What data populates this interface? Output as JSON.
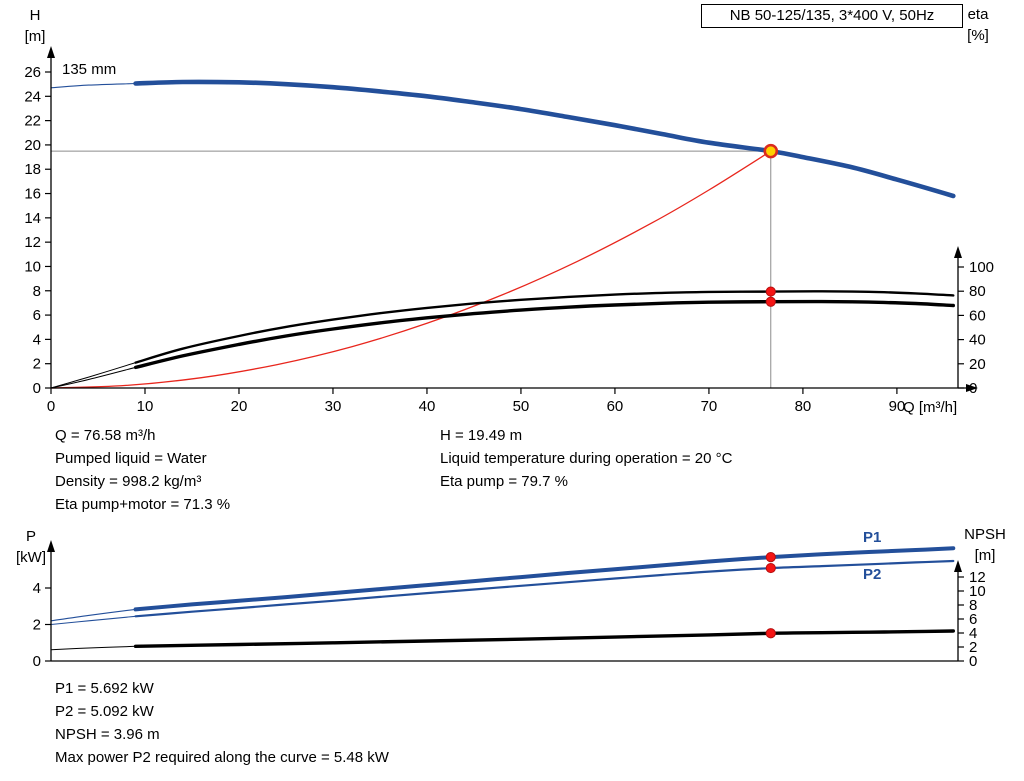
{
  "colors": {
    "pump_blue": "#234f9a",
    "system_red": "#e8261d",
    "curve_black": "#000000",
    "marker_red": "#f51515",
    "marker_ring_red": "#db2b1f",
    "duty_yellow": "#ffd100",
    "crosshair_grey": "#8c8c8c"
  },
  "duty_info": {
    "left": [
      "Q = 76.58 m³/h",
      "Pumped liquid = Water",
      "Density = 998.2 kg/m³",
      "Eta pump+motor = 71.3 %"
    ],
    "right": [
      "H = 19.49 m",
      "Liquid temperature during operation = 20 °C",
      "Eta pump = 79.7 %"
    ]
  },
  "power_info": [
    "P1 = 5.692 kW",
    "P2 = 5.092 kW",
    "NPSH = 3.96 m",
    "Max power P2 required along the curve = 5.48 kW"
  ],
  "chart_data": [
    {
      "type": "line",
      "title": "NB 50-125/135, 3*400 V, 50Hz",
      "impeller_label": "135 mm",
      "xlabel": "Q [m³/h]",
      "ylabel_left": [
        "H",
        "[m]"
      ],
      "ylabel_right": [
        "eta",
        "[%]"
      ],
      "grid": false,
      "xlim": [
        0,
        96.5
      ],
      "x_ticks": [
        0,
        10,
        20,
        30,
        40,
        50,
        60,
        70,
        80,
        90
      ],
      "left_axis": {
        "label": "H [m]",
        "lim": [
          0,
          26
        ],
        "ticks": [
          0,
          2,
          4,
          6,
          8,
          10,
          12,
          14,
          16,
          18,
          20,
          22,
          24,
          26
        ]
      },
      "right_axis": {
        "label": "eta [%]",
        "lim": [
          0,
          100
        ],
        "ticks": [
          0,
          20,
          40,
          60,
          80,
          100
        ]
      },
      "duty_point": {
        "Q": 76.58,
        "H": 19.49,
        "eta_pump": 79.7,
        "eta_pump_motor": 71.3
      },
      "series": [
        {
          "name": "head-min-flow",
          "axis": "left",
          "style": "blue-thin",
          "points": [
            [
              0,
              24.7
            ],
            [
              4,
              24.92
            ],
            [
              9,
              25.05
            ]
          ]
        },
        {
          "name": "head-135mm",
          "axis": "left",
          "style": "blue-thick",
          "points": [
            [
              9,
              25.05
            ],
            [
              14,
              25.18
            ],
            [
              20,
              25.15
            ],
            [
              25,
              25.0
            ],
            [
              30,
              24.75
            ],
            [
              35,
              24.4
            ],
            [
              40,
              24.0
            ],
            [
              45,
              23.5
            ],
            [
              50,
              22.95
            ],
            [
              55,
              22.3
            ],
            [
              60,
              21.62
            ],
            [
              65,
              20.9
            ],
            [
              70,
              20.18
            ],
            [
              76.58,
              19.49
            ],
            [
              80,
              19.0
            ],
            [
              85,
              18.2
            ],
            [
              90,
              17.15
            ],
            [
              96,
              15.8
            ]
          ]
        },
        {
          "name": "system-curve",
          "axis": "left",
          "style": "red-thin",
          "points": [
            [
              0,
              0
            ],
            [
              8,
              0.21
            ],
            [
              16,
              0.85
            ],
            [
              24,
              1.92
            ],
            [
              32,
              3.4
            ],
            [
              40,
              5.32
            ],
            [
              48,
              7.66
            ],
            [
              56,
              10.42
            ],
            [
              64,
              13.61
            ],
            [
              70,
              16.29
            ],
            [
              76.58,
              19.49
            ]
          ]
        },
        {
          "name": "eta-pump-min-flow",
          "axis": "right",
          "style": "black-thin",
          "points": [
            [
              0,
              0
            ],
            [
              4,
              9
            ],
            [
              9,
              21
            ]
          ]
        },
        {
          "name": "eta-pump",
          "axis": "right",
          "style": "black-mid",
          "points": [
            [
              9,
              21
            ],
            [
              14,
              32.5
            ],
            [
              20,
              43
            ],
            [
              25,
              50.5
            ],
            [
              30,
              56.5
            ],
            [
              35,
              61.8
            ],
            [
              40,
              66.2
            ],
            [
              45,
              69.9
            ],
            [
              50,
              72.9
            ],
            [
              55,
              75.3
            ],
            [
              60,
              77.2
            ],
            [
              65,
              78.6
            ],
            [
              70,
              79.4
            ],
            [
              76.58,
              79.7
            ],
            [
              82,
              79.9
            ],
            [
              87,
              79.5
            ],
            [
              92,
              78.2
            ],
            [
              96,
              76.5
            ]
          ]
        },
        {
          "name": "eta-pump-motor-min-flow",
          "axis": "right",
          "style": "black-thin",
          "points": [
            [
              0,
              0
            ],
            [
              4,
              7
            ],
            [
              9,
              17
            ]
          ]
        },
        {
          "name": "eta-pump-motor",
          "axis": "right",
          "style": "black-thick",
          "points": [
            [
              9,
              17
            ],
            [
              14,
              26.5
            ],
            [
              20,
              36
            ],
            [
              25,
              43
            ],
            [
              30,
              48.8
            ],
            [
              35,
              53.8
            ],
            [
              40,
              58
            ],
            [
              45,
              61.5
            ],
            [
              50,
              64.4
            ],
            [
              55,
              66.8
            ],
            [
              60,
              68.6
            ],
            [
              65,
              70
            ],
            [
              70,
              70.9
            ],
            [
              76.58,
              71.3
            ],
            [
              82,
              71.4
            ],
            [
              87,
              71
            ],
            [
              92,
              69.8
            ],
            [
              96,
              68.2
            ]
          ]
        }
      ]
    },
    {
      "type": "line",
      "ylabel_left": [
        "P",
        "[kW]"
      ],
      "ylabel_right": [
        "NPSH",
        "[m]"
      ],
      "p1_label": "P1",
      "p2_label": "P2",
      "grid": false,
      "xlim": [
        0,
        96.5
      ],
      "left_axis": {
        "label": "P [kW]",
        "lim": [
          0,
          6.8
        ],
        "ticks": [
          0,
          2,
          4
        ]
      },
      "right_axis": {
        "label": "NPSH [m]",
        "lim": [
          0,
          17.5
        ],
        "ticks": [
          0,
          2,
          4,
          6,
          8,
          10,
          12
        ]
      },
      "duty_point": {
        "Q": 76.58,
        "P1": 5.692,
        "P2": 5.092,
        "NPSH": 3.96
      },
      "series": [
        {
          "name": "p1-min-flow",
          "axis": "left",
          "style": "blue-thin",
          "points": [
            [
              0,
              2.2
            ],
            [
              4,
              2.5
            ],
            [
              9,
              2.83
            ]
          ]
        },
        {
          "name": "p1",
          "axis": "left",
          "style": "blue-mid",
          "points": [
            [
              9,
              2.83
            ],
            [
              15,
              3.1
            ],
            [
              20,
              3.3
            ],
            [
              25,
              3.5
            ],
            [
              30,
              3.72
            ],
            [
              35,
              3.94
            ],
            [
              40,
              4.16
            ],
            [
              45,
              4.38
            ],
            [
              50,
              4.6
            ],
            [
              55,
              4.82
            ],
            [
              60,
              5.03
            ],
            [
              65,
              5.24
            ],
            [
              70,
              5.45
            ],
            [
              76.58,
              5.692
            ],
            [
              82,
              5.85
            ],
            [
              87,
              5.97
            ],
            [
              92,
              6.08
            ],
            [
              96,
              6.18
            ]
          ]
        },
        {
          "name": "p2-min-flow",
          "axis": "left",
          "style": "blue-thin",
          "points": [
            [
              0,
              2.0
            ],
            [
              4,
              2.2
            ],
            [
              9,
              2.45
            ]
          ]
        },
        {
          "name": "p2",
          "axis": "left",
          "style": "blue-p2",
          "points": [
            [
              9,
              2.45
            ],
            [
              15,
              2.7
            ],
            [
              20,
              2.9
            ],
            [
              25,
              3.1
            ],
            [
              30,
              3.3
            ],
            [
              35,
              3.51
            ],
            [
              40,
              3.72
            ],
            [
              45,
              3.92
            ],
            [
              50,
              4.12
            ],
            [
              55,
              4.32
            ],
            [
              60,
              4.52
            ],
            [
              65,
              4.71
            ],
            [
              70,
              4.9
            ],
            [
              76.58,
              5.092
            ],
            [
              82,
              5.2
            ],
            [
              87,
              5.3
            ],
            [
              92,
              5.4
            ],
            [
              96,
              5.48
            ]
          ]
        },
        {
          "name": "npsh-min-flow",
          "axis": "right",
          "style": "black-thin",
          "points": [
            [
              0,
              1.6
            ],
            [
              4,
              1.85
            ],
            [
              9,
              2.1
            ]
          ]
        },
        {
          "name": "npsh",
          "axis": "right",
          "style": "black-thick",
          "points": [
            [
              9,
              2.1
            ],
            [
              20,
              2.35
            ],
            [
              30,
              2.6
            ],
            [
              40,
              2.85
            ],
            [
              50,
              3.12
            ],
            [
              60,
              3.42
            ],
            [
              70,
              3.73
            ],
            [
              76.58,
              3.96
            ],
            [
              82,
              4.05
            ],
            [
              87,
              4.12
            ],
            [
              92,
              4.2
            ],
            [
              96,
              4.28
            ]
          ]
        }
      ]
    }
  ]
}
